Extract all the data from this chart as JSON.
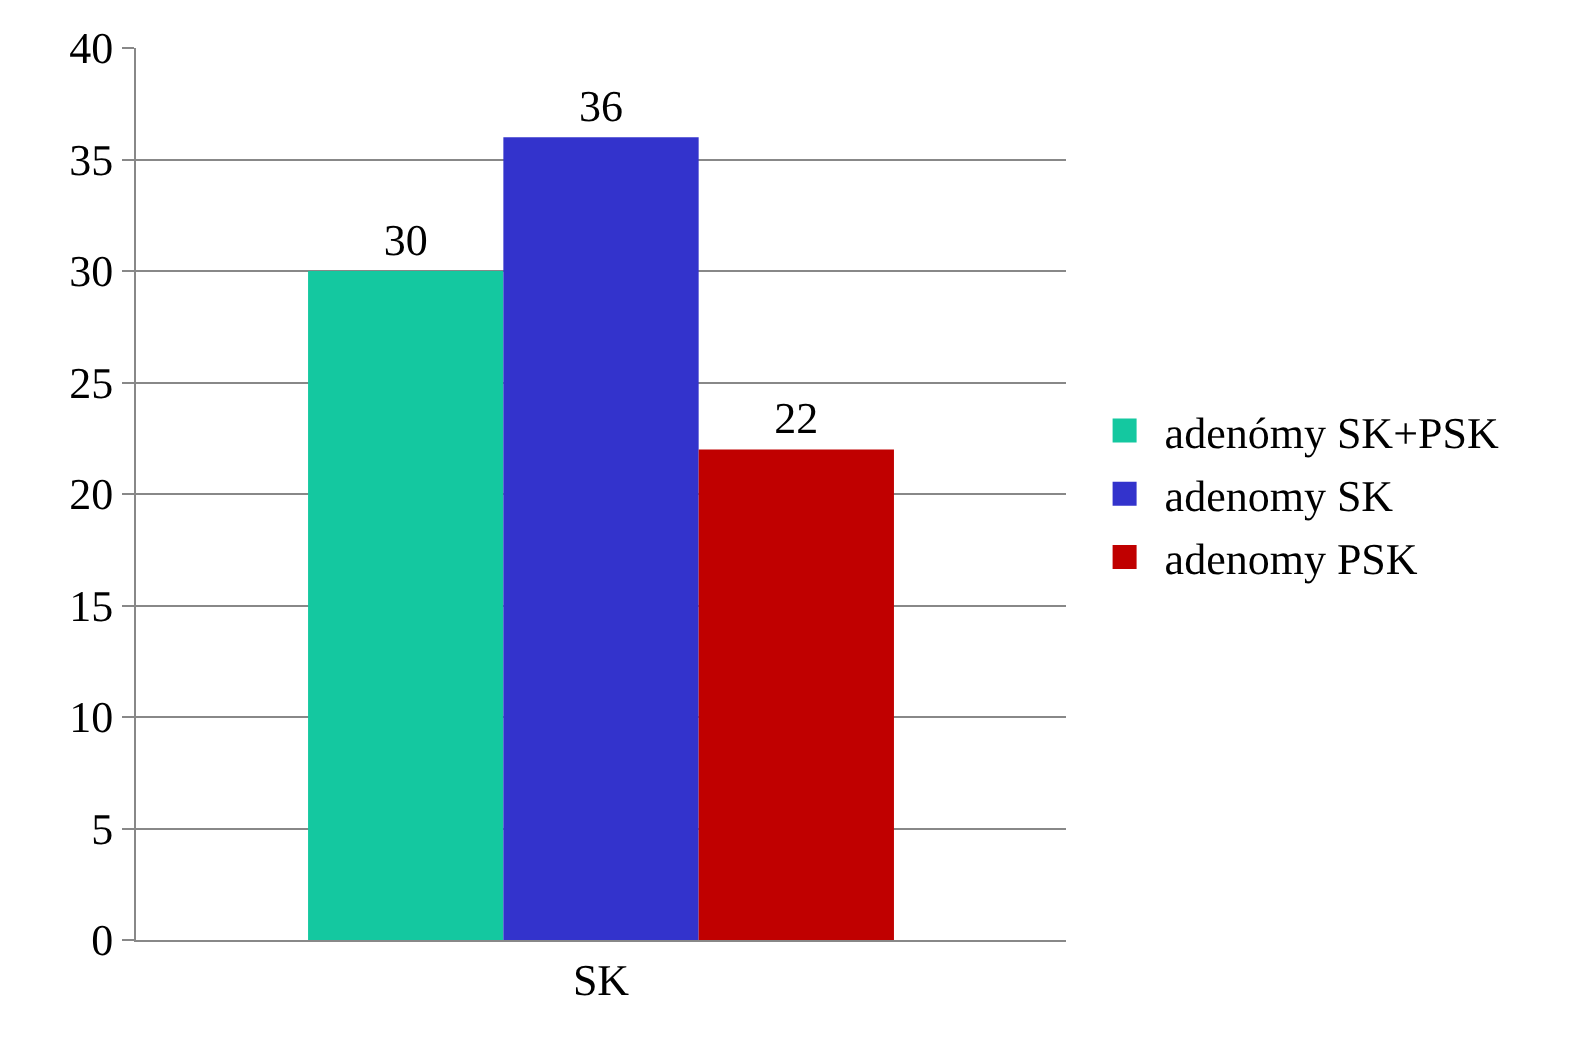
{
  "chart_data": {
    "type": "bar",
    "categories": [
      "SK"
    ],
    "series": [
      {
        "name": "adenómy SK+PSK",
        "color": "#14c8a0",
        "values": [
          30
        ]
      },
      {
        "name": "adenomy SK",
        "color": "#3333cc",
        "values": [
          36
        ]
      },
      {
        "name": "adenomy PSK",
        "color": "#c00000",
        "values": [
          22
        ]
      }
    ],
    "ylim": [
      0,
      40
    ],
    "yticks": [
      0,
      5,
      10,
      15,
      20,
      25,
      30,
      35,
      40
    ],
    "grid": "y",
    "legend": "right",
    "data_labels": true
  }
}
